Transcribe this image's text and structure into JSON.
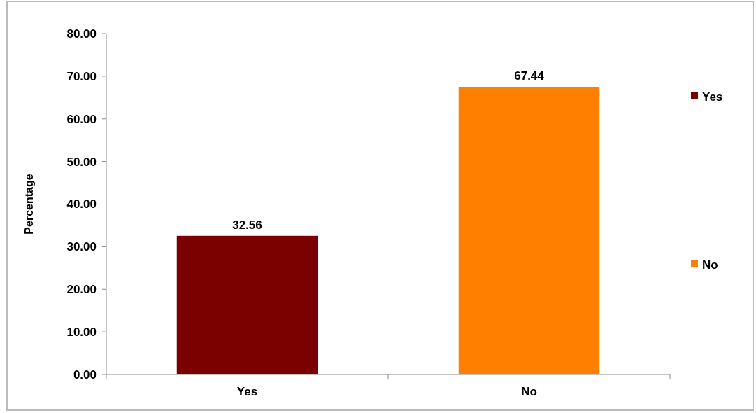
{
  "chart_data": {
    "type": "bar",
    "ylabel": "Percentage",
    "categories": [
      "Yes",
      "No"
    ],
    "series": [
      {
        "name": "Yes",
        "color": "#7b0000",
        "values": [
          32.56,
          null
        ]
      },
      {
        "name": "No",
        "color": "#ff8000",
        "values": [
          null,
          67.44
        ]
      }
    ],
    "ylim": [
      0,
      80
    ],
    "yticks": [
      {
        "value": 0,
        "label": "0.00"
      },
      {
        "value": 10,
        "label": "10.00"
      },
      {
        "value": 20,
        "label": "20.00"
      },
      {
        "value": 30,
        "label": "30.00"
      },
      {
        "value": 40,
        "label": "40.00"
      },
      {
        "value": 50,
        "label": "50.00"
      },
      {
        "value": 60,
        "label": "60.00"
      },
      {
        "value": 70,
        "label": "70.00"
      },
      {
        "value": 80,
        "label": "80.00"
      }
    ],
    "data_labels": true,
    "legend": "right",
    "grid": false
  }
}
